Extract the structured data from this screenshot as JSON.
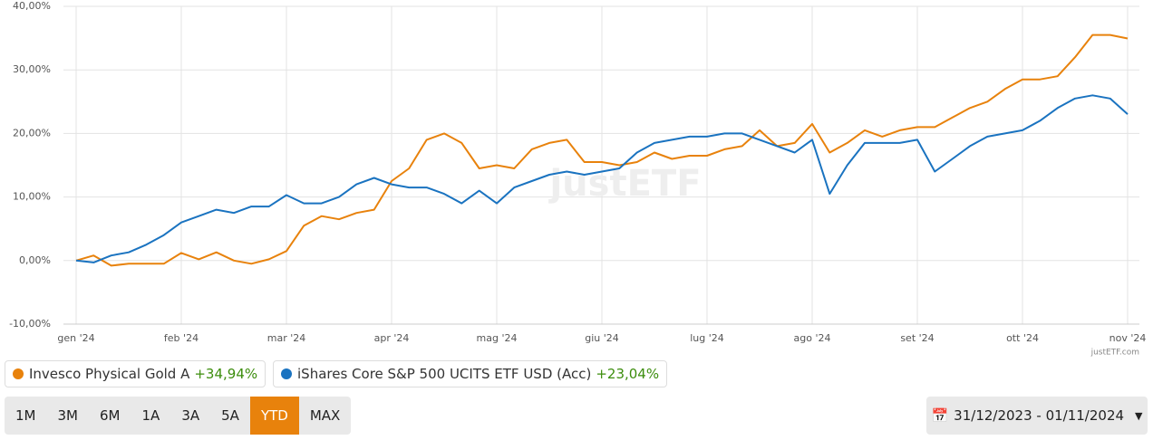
{
  "chart_data": {
    "type": "line",
    "categories": [
      "gen '24",
      null,
      null,
      null,
      null,
      null,
      "feb '24",
      null,
      null,
      null,
      null,
      null,
      "mar '24",
      null,
      null,
      null,
      null,
      null,
      "apr '24",
      null,
      null,
      null,
      null,
      null,
      "mag '24",
      null,
      null,
      null,
      null,
      null,
      "giu '24",
      null,
      null,
      null,
      null,
      null,
      "lug '24",
      null,
      null,
      null,
      null,
      null,
      "ago '24",
      null,
      null,
      null,
      null,
      null,
      "set '24",
      null,
      null,
      null,
      null,
      null,
      "ott '24",
      null,
      null,
      null,
      null,
      null,
      "nov '24"
    ],
    "series": [
      {
        "name": "Invesco Physical Gold A",
        "change": "+34,94%",
        "color": "#e8820c",
        "values": [
          0,
          0.8,
          -0.8,
          -0.5,
          -0.5,
          -0.5,
          1.2,
          0.2,
          1.3,
          0,
          -0.5,
          0.2,
          1.5,
          5.5,
          7,
          6.5,
          7.5,
          8,
          12.5,
          14.5,
          19,
          20,
          18.5,
          14.5,
          15,
          14.5,
          17.5,
          18.5,
          19,
          15.5,
          15.5,
          15,
          15.5,
          17,
          16,
          16.5,
          16.5,
          17.5,
          18,
          20.5,
          18,
          18.5,
          21.5,
          17,
          18.5,
          20.5,
          19.5,
          20.5,
          21,
          21,
          22.5,
          24,
          25,
          27,
          28.5,
          28.5,
          29,
          32,
          35.5,
          35.5,
          34.94
        ]
      },
      {
        "name": "iShares Core S&P 500 UCITS ETF USD (Acc)",
        "change": "+23,04%",
        "color": "#1a73c0",
        "values": [
          0,
          -0.3,
          0.8,
          1.3,
          2.5,
          4,
          6,
          7,
          8,
          7.5,
          8.5,
          8.5,
          10.3,
          9,
          9,
          10,
          12,
          13,
          12,
          11.5,
          11.5,
          10.5,
          9,
          11,
          9,
          11.5,
          12.5,
          13.5,
          14,
          13.5,
          14,
          14.5,
          17,
          18.5,
          19,
          19.5,
          19.5,
          20,
          20,
          19,
          18,
          17,
          19,
          10.5,
          15,
          18.5,
          18.5,
          18.5,
          19,
          14,
          16,
          18,
          19.5,
          20,
          20.5,
          22,
          24,
          25.5,
          26,
          25.5,
          23.04
        ]
      }
    ],
    "ylim": [
      -10,
      40
    ],
    "yticks": [
      {
        "value": -10,
        "label": "-10,00%"
      },
      {
        "value": 0,
        "label": "0,00%"
      },
      {
        "value": 10,
        "label": "10,00%"
      },
      {
        "value": 20,
        "label": "20,00%"
      },
      {
        "value": 30,
        "label": "30,00%"
      },
      {
        "value": 40,
        "label": "40,00%"
      }
    ],
    "grid": true,
    "watermark": "justETF",
    "credit": "justETF.com"
  },
  "ui": {
    "periods": [
      "1M",
      "3M",
      "6M",
      "1A",
      "3A",
      "5A",
      "YTD",
      "MAX"
    ],
    "active_period": 6,
    "date_range": "31/12/2023 - 01/11/2024"
  }
}
